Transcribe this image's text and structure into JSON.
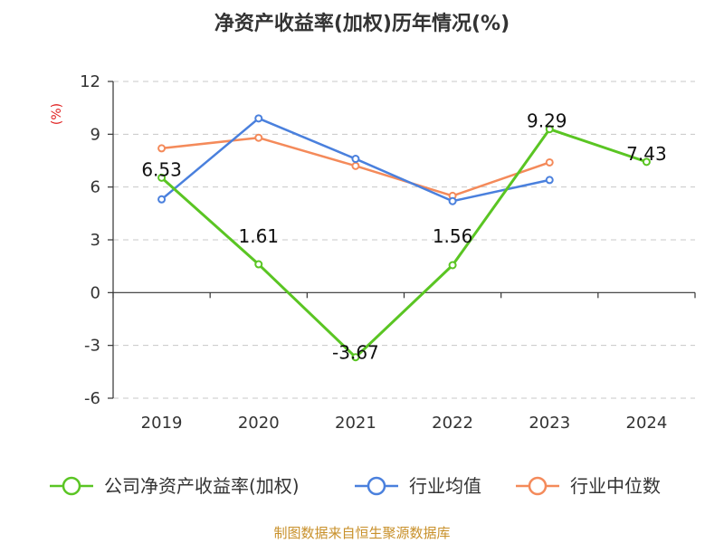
{
  "chart_data": {
    "type": "line",
    "title": "净资产收益率(加权)历年情况(%)",
    "ylabel": "(%)",
    "categories": [
      "2019",
      "2020",
      "2021",
      "2022",
      "2023",
      "2024"
    ],
    "ylim": [
      -6,
      12
    ],
    "yticks": [
      12,
      9,
      6,
      3,
      0,
      -3,
      -6
    ],
    "grid": true,
    "legend_position": "bottom",
    "series": [
      {
        "name": "公司净资产收益率(加权)",
        "color": "#5ac523",
        "values": [
          6.53,
          1.61,
          -3.67,
          1.56,
          9.29,
          7.43
        ],
        "labels": [
          "6.53",
          "1.61",
          "-3.67",
          "1.56",
          "9.29",
          "7.43"
        ]
      },
      {
        "name": "行业均值",
        "color": "#4a80dd",
        "values": [
          5.3,
          9.9,
          7.6,
          5.2,
          6.4,
          null
        ]
      },
      {
        "name": "行业中位数",
        "color": "#f48a5a",
        "values": [
          8.2,
          8.8,
          7.2,
          5.5,
          7.4,
          null
        ]
      }
    ],
    "source": "制图数据来自恒生聚源数据库"
  }
}
